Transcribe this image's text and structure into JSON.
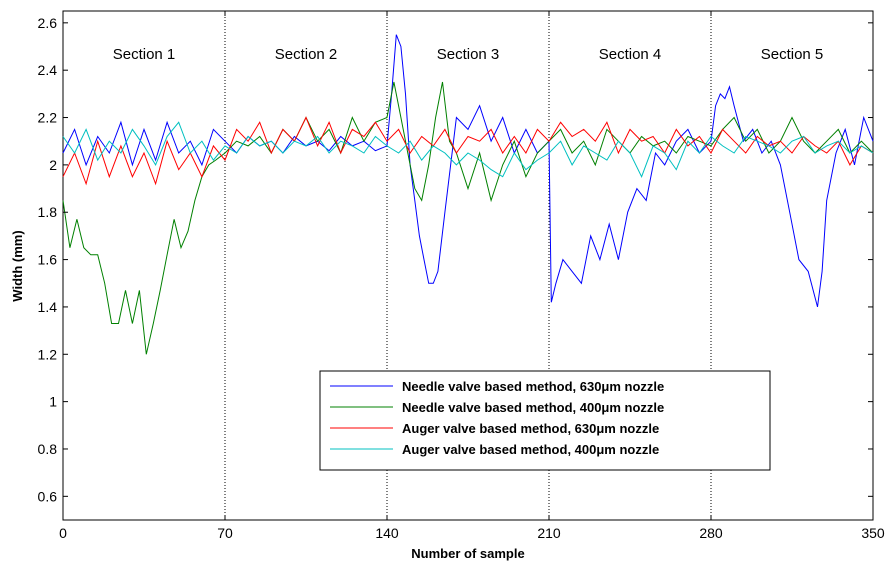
{
  "chart_data": {
    "type": "line",
    "title": "",
    "xlabel": "Number of sample",
    "ylabel": "Width (mm)",
    "xlim": [
      0,
      350
    ],
    "ylim": [
      0.5,
      2.65
    ],
    "x_ticks": [
      0,
      70,
      140,
      210,
      280,
      350
    ],
    "y_ticks": [
      0.6,
      0.8,
      1,
      1.2,
      1.4,
      1.6,
      1.8,
      2,
      2.2,
      2.4,
      2.6
    ],
    "grid": false,
    "legend_position": "bottom-right",
    "section_dividers": [
      70,
      140,
      210,
      280
    ],
    "sections": [
      {
        "label": "Section 1",
        "x_center": 35
      },
      {
        "label": "Section 2",
        "x_center": 105
      },
      {
        "label": "Section 3",
        "x_center": 175
      },
      {
        "label": "Section 4",
        "x_center": 245
      },
      {
        "label": "Section 5",
        "x_center": 315
      }
    ],
    "series": [
      {
        "name": "Needle valve based method, 630μm nozzle",
        "color": "#0000ff",
        "x": [
          0,
          5,
          10,
          15,
          20,
          25,
          30,
          35,
          40,
          45,
          50,
          55,
          60,
          65,
          70,
          75,
          80,
          85,
          90,
          95,
          100,
          105,
          110,
          115,
          120,
          125,
          130,
          135,
          140,
          142,
          144,
          146,
          148,
          150,
          152,
          154,
          156,
          158,
          160,
          162,
          165,
          170,
          175,
          180,
          185,
          190,
          195,
          200,
          205,
          210,
          211,
          213,
          216,
          220,
          224,
          228,
          232,
          236,
          240,
          244,
          248,
          252,
          256,
          260,
          265,
          270,
          275,
          280,
          282,
          284,
          286,
          288,
          290,
          294,
          298,
          302,
          306,
          310,
          314,
          318,
          322,
          326,
          328,
          330,
          334,
          338,
          342,
          346,
          350
        ],
        "y": [
          2.05,
          2.15,
          2.0,
          2.12,
          2.05,
          2.18,
          2.0,
          2.15,
          2.02,
          2.18,
          2.05,
          2.1,
          2.0,
          2.15,
          2.1,
          2.05,
          2.12,
          2.08,
          2.1,
          2.05,
          2.12,
          2.08,
          2.1,
          2.06,
          2.12,
          2.08,
          2.1,
          2.06,
          2.08,
          2.3,
          2.55,
          2.5,
          2.3,
          2.0,
          1.85,
          1.7,
          1.6,
          1.5,
          1.5,
          1.55,
          1.8,
          2.2,
          2.15,
          2.25,
          2.1,
          2.2,
          2.05,
          2.15,
          2.05,
          2.1,
          1.42,
          1.5,
          1.6,
          1.55,
          1.5,
          1.7,
          1.6,
          1.75,
          1.6,
          1.8,
          1.9,
          1.85,
          2.05,
          2.0,
          2.1,
          2.15,
          2.05,
          2.1,
          2.25,
          2.3,
          2.28,
          2.33,
          2.25,
          2.1,
          2.15,
          2.05,
          2.1,
          2.0,
          1.8,
          1.6,
          1.55,
          1.4,
          1.55,
          1.85,
          2.05,
          2.15,
          2.0,
          2.2,
          2.1
        ]
      },
      {
        "name": "Needle valve based method, 400μm nozzle",
        "color": "#008000",
        "x": [
          0,
          3,
          6,
          9,
          12,
          15,
          18,
          21,
          24,
          27,
          30,
          33,
          36,
          39,
          42,
          45,
          48,
          51,
          54,
          57,
          60,
          63,
          66,
          70,
          75,
          80,
          85,
          90,
          95,
          100,
          105,
          110,
          115,
          120,
          125,
          130,
          135,
          140,
          143,
          146,
          149,
          152,
          155,
          158,
          161,
          164,
          167,
          170,
          175,
          180,
          185,
          190,
          195,
          200,
          205,
          210,
          215,
          220,
          225,
          230,
          235,
          240,
          245,
          250,
          255,
          260,
          265,
          270,
          275,
          280,
          285,
          290,
          295,
          300,
          305,
          310,
          315,
          320,
          325,
          330,
          335,
          340,
          345,
          350
        ],
        "y": [
          1.85,
          1.65,
          1.77,
          1.65,
          1.62,
          1.62,
          1.5,
          1.33,
          1.33,
          1.47,
          1.33,
          1.47,
          1.2,
          1.33,
          1.47,
          1.62,
          1.77,
          1.65,
          1.72,
          1.85,
          1.95,
          2.0,
          2.02,
          2.05,
          2.1,
          2.08,
          2.12,
          2.05,
          2.15,
          2.1,
          2.2,
          2.1,
          2.15,
          2.05,
          2.2,
          2.1,
          2.18,
          2.2,
          2.35,
          2.2,
          2.05,
          1.9,
          1.85,
          2.0,
          2.2,
          2.35,
          2.1,
          2.05,
          1.9,
          2.05,
          1.85,
          2.0,
          2.1,
          1.95,
          2.05,
          2.1,
          2.15,
          2.05,
          2.1,
          2.0,
          2.15,
          2.1,
          2.05,
          2.12,
          2.08,
          2.1,
          2.05,
          2.12,
          2.1,
          2.08,
          2.15,
          2.2,
          2.1,
          2.15,
          2.05,
          2.1,
          2.2,
          2.1,
          2.05,
          2.1,
          2.15,
          2.05,
          2.1,
          2.05
        ]
      },
      {
        "name": "Auger valve based method, 630μm nozzle",
        "color": "#ff0000",
        "x": [
          0,
          5,
          10,
          15,
          20,
          25,
          30,
          35,
          40,
          45,
          50,
          55,
          60,
          65,
          70,
          75,
          80,
          85,
          90,
          95,
          100,
          105,
          110,
          115,
          120,
          125,
          130,
          135,
          140,
          145,
          150,
          155,
          160,
          165,
          170,
          175,
          180,
          185,
          190,
          195,
          200,
          205,
          210,
          215,
          220,
          225,
          230,
          235,
          240,
          245,
          250,
          255,
          260,
          265,
          270,
          275,
          280,
          285,
          290,
          295,
          300,
          305,
          310,
          315,
          320,
          325,
          330,
          335,
          340,
          345,
          350
        ],
        "y": [
          1.95,
          2.05,
          1.92,
          2.1,
          1.95,
          2.08,
          1.95,
          2.05,
          1.92,
          2.1,
          1.98,
          2.05,
          1.95,
          2.08,
          2.02,
          2.15,
          2.1,
          2.18,
          2.05,
          2.15,
          2.1,
          2.2,
          2.08,
          2.18,
          2.05,
          2.15,
          2.12,
          2.18,
          2.1,
          2.15,
          2.05,
          2.12,
          2.08,
          2.15,
          2.05,
          2.12,
          2.1,
          2.15,
          2.05,
          2.12,
          2.05,
          2.15,
          2.1,
          2.18,
          2.12,
          2.15,
          2.1,
          2.18,
          2.05,
          2.15,
          2.1,
          2.12,
          2.05,
          2.15,
          2.08,
          2.12,
          2.05,
          2.15,
          2.1,
          2.05,
          2.12,
          2.08,
          2.1,
          2.05,
          2.12,
          2.08,
          2.05,
          2.1,
          2.0,
          2.08,
          2.05
        ]
      },
      {
        "name": "Auger valve based method, 400μm nozzle",
        "color": "#00c0c0",
        "x": [
          0,
          5,
          10,
          15,
          20,
          25,
          30,
          35,
          40,
          45,
          50,
          55,
          60,
          65,
          70,
          75,
          80,
          85,
          90,
          95,
          100,
          105,
          110,
          115,
          120,
          125,
          130,
          135,
          140,
          145,
          150,
          155,
          160,
          165,
          170,
          175,
          180,
          185,
          190,
          195,
          200,
          205,
          210,
          215,
          220,
          225,
          230,
          235,
          240,
          245,
          250,
          255,
          260,
          265,
          270,
          275,
          280,
          285,
          290,
          295,
          300,
          305,
          310,
          315,
          320,
          325,
          330,
          335,
          340,
          345,
          350
        ],
        "y": [
          2.12,
          2.05,
          2.15,
          2.02,
          2.1,
          2.05,
          2.15,
          2.08,
          2.0,
          2.12,
          2.18,
          2.05,
          2.1,
          2.02,
          2.08,
          2.05,
          2.12,
          2.08,
          2.1,
          2.05,
          2.1,
          2.08,
          2.12,
          2.05,
          2.1,
          2.08,
          2.05,
          2.12,
          2.08,
          2.05,
          2.1,
          2.02,
          2.08,
          2.05,
          2.0,
          2.05,
          2.02,
          1.98,
          1.95,
          2.05,
          1.98,
          2.02,
          2.05,
          2.1,
          2.0,
          2.08,
          2.05,
          2.02,
          2.1,
          2.05,
          1.95,
          2.08,
          2.05,
          1.98,
          2.1,
          2.05,
          2.12,
          2.08,
          2.05,
          2.12,
          2.1,
          2.08,
          2.05,
          2.1,
          2.12,
          2.05,
          2.08,
          2.1,
          2.05,
          2.08,
          2.05
        ]
      }
    ]
  }
}
